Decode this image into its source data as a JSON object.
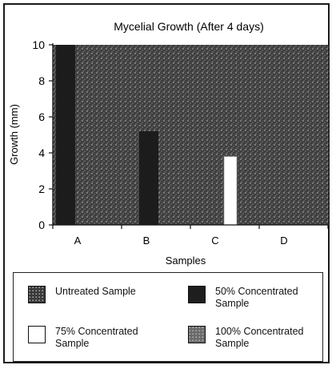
{
  "chart_data": {
    "type": "bar",
    "title": "Mycelial Growth (After 4 days)",
    "xlabel": "Samples",
    "ylabel": "Growth (mm)",
    "ylim": [
      0,
      10
    ],
    "yticks": [
      "0",
      "2",
      "4",
      "6",
      "8",
      "10"
    ],
    "categories": [
      "A",
      "B",
      "C",
      "D"
    ],
    "series": [
      {
        "name": "Untreated Sample",
        "values": [
          10,
          10,
          10,
          10
        ]
      },
      {
        "name": "50% Concentrated Sample",
        "values": [
          10,
          5.2,
          0,
          0
        ]
      },
      {
        "name": "75% Concentrated Sample",
        "values": [
          0,
          0,
          3.8,
          0
        ]
      },
      {
        "name": "100% Concentrated Sample",
        "values": [
          10,
          10,
          10,
          10
        ]
      }
    ],
    "grid": false,
    "legend_placement": "bottom"
  },
  "legend": [
    {
      "label": "Untreated Sample",
      "color": "#3a3a3a"
    },
    {
      "label": "50% Concentrated Sample",
      "color": "#1e1e1e"
    },
    {
      "label": "75% Concentrated Sample",
      "color": "#ffffff"
    },
    {
      "label": "100% Concentrated Sample",
      "color": "#6b6b6b"
    }
  ],
  "colors": {
    "speckle_background": "#4a4a4a",
    "dark_bar": "#1c1c1c",
    "white_bar": "#ffffff"
  }
}
